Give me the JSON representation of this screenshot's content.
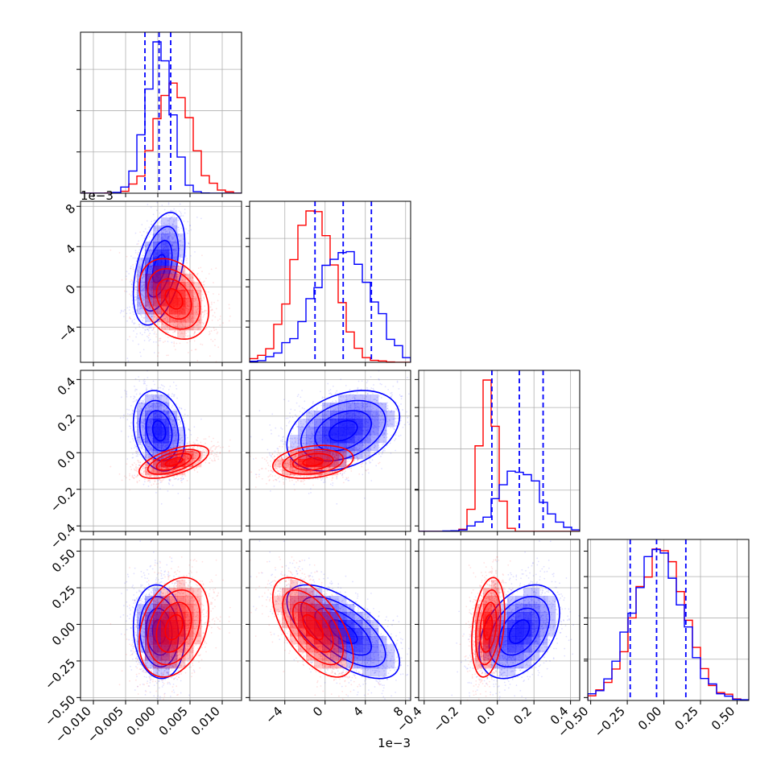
{
  "chart_data": {
    "type": "scatter",
    "subtype": "corner-plot",
    "title": "",
    "grid": true,
    "legend": "none",
    "colors": {
      "blue": "#0000ff",
      "red": "#ff0000",
      "grid": "#b0b0b0"
    },
    "params": [
      {
        "range": [
          -0.012,
          0.013
        ],
        "ticks": [
          -0.01,
          -0.005,
          0.0,
          0.005,
          0.01
        ],
        "tick_labels": [
          "−0.010",
          "−0.005",
          "0.000",
          "0.005",
          "0.010"
        ]
      },
      {
        "range": [
          -0.0075,
          0.0085
        ],
        "ticks": [
          -0.004,
          0.0,
          0.004,
          0.008
        ],
        "tick_labels": [
          "−4",
          "0",
          "4",
          "8"
        ],
        "offset_label": "1e−3"
      },
      {
        "range": [
          -0.43,
          0.45
        ],
        "ticks": [
          -0.4,
          -0.2,
          0.0,
          0.2,
          0.4
        ],
        "tick_labels": [
          "−0.4",
          "−0.2",
          "0.0",
          "0.2",
          "0.4"
        ]
      },
      {
        "range": [
          -0.52,
          0.58
        ],
        "ticks": [
          -0.5,
          -0.25,
          0.0,
          0.25,
          0.5
        ],
        "tick_labels": [
          "−0.50",
          "−0.25",
          "0.00",
          "0.25",
          "0.50"
        ]
      }
    ],
    "series": [
      {
        "color": "#0000ff",
        "mean": [
          0.0002,
          0.0018,
          0.12,
          -0.05
        ],
        "std": [
          0.002,
          0.0028,
          0.11,
          0.16
        ],
        "quantiles": [
          [
            -0.002,
            0.0002,
            0.002
          ],
          [
            -0.001,
            0.0018,
            0.0046
          ],
          [
            -0.03,
            0.12,
            0.25
          ],
          [
            -0.23,
            -0.05,
            0.15
          ]
        ]
      },
      {
        "color": "#ff0000",
        "mean": [
          0.0025,
          -0.0012,
          -0.05,
          -0.02
        ],
        "std": [
          0.0027,
          0.002,
          0.045,
          0.17
        ]
      }
    ],
    "correlations": {
      "blue": [
        [
          0,
          1,
          0.45
        ],
        [
          0,
          2,
          -0.2
        ],
        [
          0,
          3,
          -0.1
        ],
        [
          1,
          2,
          0.35
        ],
        [
          1,
          3,
          -0.65
        ],
        [
          2,
          3,
          0.4
        ]
      ],
      "red": [
        [
          0,
          1,
          -0.3
        ],
        [
          0,
          2,
          0.6
        ],
        [
          0,
          3,
          0.3
        ],
        [
          1,
          2,
          0.25
        ],
        [
          1,
          3,
          -0.6
        ],
        [
          2,
          3,
          0.3
        ]
      ]
    },
    "offset_label": "1e−3",
    "n_bins": 20
  }
}
